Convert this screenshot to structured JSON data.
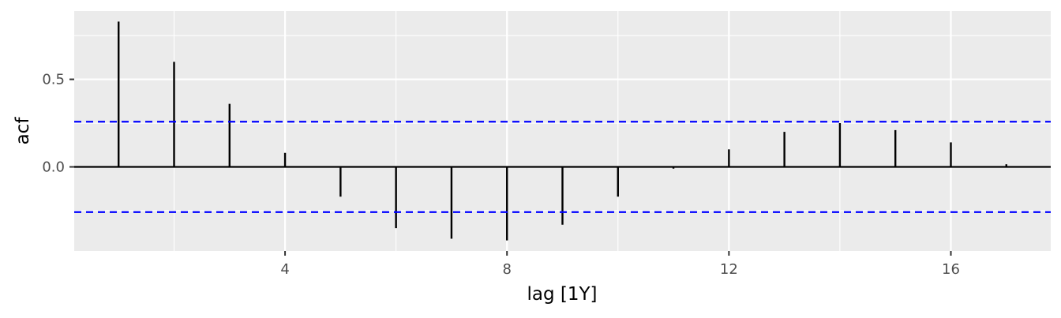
{
  "chart_data": {
    "type": "bar",
    "subtype": "acf-correlogram",
    "title": "",
    "xlabel": "lag [1Y]",
    "ylabel": "acf",
    "xlim": [
      0.2,
      17.8
    ],
    "ylim": [
      -0.48,
      0.89
    ],
    "xticks": [
      4,
      8,
      12,
      16
    ],
    "yticks": [
      0.0,
      0.5
    ],
    "ytick_labels": [
      "0.0",
      "0.5"
    ],
    "grid": true,
    "legend": "none",
    "x": [
      1,
      2,
      3,
      4,
      5,
      6,
      7,
      8,
      9,
      10,
      11,
      12,
      13,
      14,
      15,
      16,
      17
    ],
    "values": [
      0.83,
      0.6,
      0.36,
      0.08,
      -0.17,
      -0.35,
      -0.41,
      -0.42,
      -0.33,
      -0.17,
      -0.01,
      0.1,
      0.2,
      0.25,
      0.21,
      0.14,
      0.015
    ],
    "confidence_bounds": [
      -0.258,
      0.258
    ],
    "colors": {
      "panel_background": "#ebebeb",
      "grid": "#ffffff",
      "bars": "#000000",
      "confidence_lines": "#0000ff"
    }
  }
}
